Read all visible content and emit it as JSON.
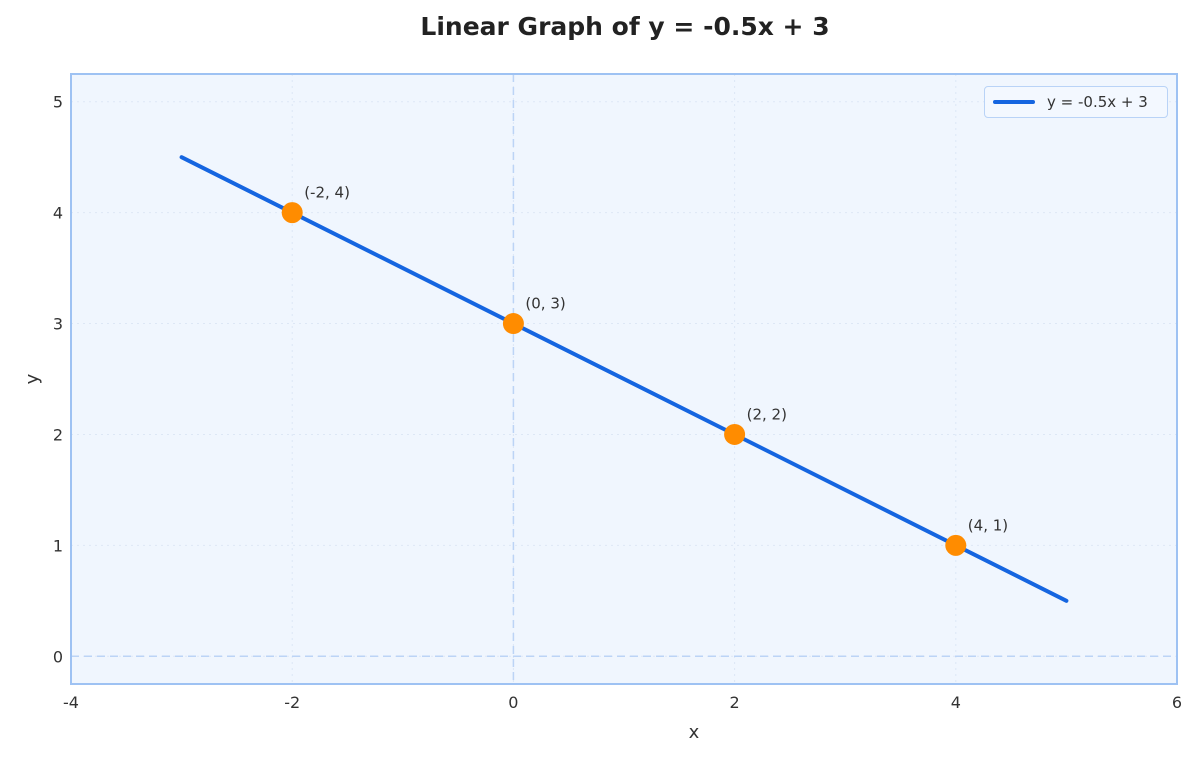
{
  "chart_data": {
    "type": "line",
    "title": "Linear Graph of y = -0.5x + 3",
    "xlabel": "x",
    "ylabel": "y",
    "xlim": [
      -4,
      6
    ],
    "ylim": [
      -0.25,
      5.25
    ],
    "xticks": [
      "-4",
      "-2",
      "0",
      "2",
      "4",
      "6"
    ],
    "yticks": [
      "0",
      "1",
      "2",
      "3",
      "4",
      "5"
    ],
    "grid": true,
    "legend_position": "upper right",
    "series": [
      {
        "name": "y = -0.5x + 3",
        "color": "#1565e0",
        "x": [
          -3,
          5
        ],
        "y": [
          4.5,
          0.5
        ]
      }
    ],
    "points": [
      {
        "x": -2,
        "y": 4,
        "label": "(-2, 4)"
      },
      {
        "x": 0,
        "y": 3,
        "label": "(0, 3)"
      },
      {
        "x": 2,
        "y": 2,
        "label": "(2, 2)"
      },
      {
        "x": 4,
        "y": 1,
        "label": "(4, 1)"
      }
    ],
    "point_color": "#ff8c00",
    "reference_lines": {
      "x": 0,
      "y": 0
    }
  },
  "legend": {
    "label": "y = -0.5x + 3"
  }
}
